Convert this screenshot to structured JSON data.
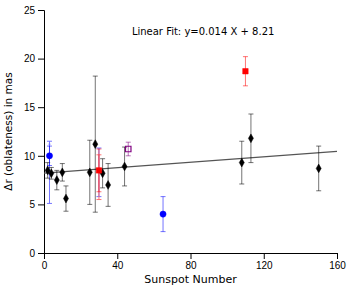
{
  "chart_data": {
    "type": "scatter",
    "title": "Linear Fit: y=0.014 X + 8.21",
    "xlabel": "Sunspot Number",
    "ylabel": "Δr (oblateness) in mas",
    "xlim": [
      0,
      160
    ],
    "ylim": [
      0,
      25
    ],
    "xticks": [
      0,
      40,
      80,
      120,
      160
    ],
    "yticks": [
      0,
      5,
      10,
      15,
      20,
      25
    ],
    "series": [
      {
        "type": "line",
        "color": "#555555",
        "line_style": "solid",
        "marker": "none",
        "x": [
          0,
          160
        ],
        "values": [
          8.21,
          10.45
        ]
      },
      {
        "type": "scatter",
        "color": "black",
        "marker": "diamond",
        "x": [
          2,
          4,
          7,
          10,
          12,
          25,
          28,
          32,
          35,
          44,
          108,
          113,
          150
        ],
        "values": [
          8.5,
          8.2,
          7.5,
          8.3,
          5.6,
          8.3,
          11.2,
          8.2,
          7.0,
          8.9,
          9.3,
          11.8,
          8.7
        ],
        "errors": [
          0.8,
          0.6,
          1.0,
          0.9,
          1.3,
          3.3,
          7.0,
          1.5,
          2.2,
          2.0,
          2.2,
          2.5,
          2.3
        ]
      },
      {
        "type": "scatter",
        "color": "blue",
        "marker": "circle",
        "x": [
          3,
          65
        ],
        "values": [
          10.0,
          4.0
        ],
        "errors": [
          1.0,
          1.8
        ]
      },
      {
        "type": "scatter",
        "color": "red",
        "marker": "square",
        "x": [
          30,
          110
        ],
        "values": [
          8.5,
          18.7
        ],
        "errors": [
          2.2,
          1.5
        ]
      },
      {
        "type": "scatter",
        "color": "purple",
        "marker": "square-open",
        "x": [
          46
        ],
        "values": [
          10.7
        ],
        "errors": [
          0.7
        ]
      },
      {
        "type": "scatter",
        "color": "#6666ff",
        "marker": "none",
        "x": [
          3,
          30
        ],
        "values": [
          8.3,
          8.3
        ],
        "errors": [
          3.2,
          2.5
        ]
      },
      {
        "type": "scatter",
        "color": "#ff6666",
        "marker": "none",
        "x": [
          30
        ],
        "values": [
          7.8
        ],
        "errors": [
          2.3
        ]
      },
      {
        "type": "scatter",
        "color": "#6666ff",
        "marker": "none",
        "x": [
          3,
          3
        ],
        "values": [
          11.2,
          8.1
        ],
        "x_errors": [
          0.5,
          0.5
        ]
      }
    ]
  }
}
